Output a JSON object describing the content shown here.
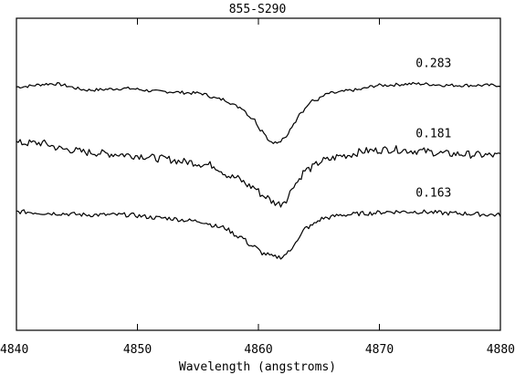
{
  "chart_data": {
    "type": "line",
    "title": "855-S290",
    "xlabel": "Wavelength (angstroms)",
    "ylabel": "",
    "xlim": [
      4840,
      4880
    ],
    "ylim": [
      0,
      1
    ],
    "x_ticks": [
      "4840",
      "4850",
      "4860",
      "4870",
      "4880"
    ],
    "grid": false,
    "series": [
      {
        "name": "0.283",
        "x": [
          4840,
          4843,
          4846,
          4849,
          4852,
          4855,
          4857,
          4858.5,
          4859.5,
          4860.3,
          4861,
          4861.6,
          4862.2,
          4862.8,
          4863.5,
          4864.5,
          4866,
          4868,
          4870,
          4873,
          4876,
          4880
        ],
        "y": [
          0.78,
          0.79,
          0.77,
          0.775,
          0.765,
          0.76,
          0.74,
          0.715,
          0.68,
          0.64,
          0.605,
          0.6,
          0.615,
          0.655,
          0.7,
          0.735,
          0.76,
          0.77,
          0.785,
          0.79,
          0.785,
          0.785
        ],
        "noise": 0.005
      },
      {
        "name": "0.181",
        "x": [
          4840,
          4842,
          4844,
          4846,
          4848,
          4850,
          4852,
          4854,
          4856,
          4858,
          4859.5,
          4860.5,
          4861.3,
          4861.8,
          4862.3,
          4863,
          4864,
          4865.5,
          4867,
          4869,
          4871,
          4873,
          4876,
          4880
        ],
        "y": [
          0.6,
          0.6,
          0.58,
          0.57,
          0.565,
          0.56,
          0.55,
          0.54,
          0.53,
          0.49,
          0.46,
          0.43,
          0.41,
          0.405,
          0.42,
          0.47,
          0.515,
          0.545,
          0.56,
          0.575,
          0.58,
          0.575,
          0.565,
          0.56
        ],
        "noise": 0.012
      },
      {
        "name": "0.163",
        "x": [
          4840,
          4843,
          4846,
          4849,
          4852,
          4855,
          4857,
          4858.5,
          4859.5,
          4860.5,
          4861.3,
          4861.9,
          4862.5,
          4863.2,
          4864,
          4865.5,
          4867,
          4869,
          4871,
          4873,
          4876,
          4880
        ],
        "y": [
          0.38,
          0.375,
          0.37,
          0.37,
          0.36,
          0.35,
          0.33,
          0.3,
          0.27,
          0.245,
          0.235,
          0.235,
          0.25,
          0.29,
          0.33,
          0.36,
          0.37,
          0.375,
          0.38,
          0.38,
          0.375,
          0.37
        ],
        "noise": 0.007
      }
    ]
  }
}
